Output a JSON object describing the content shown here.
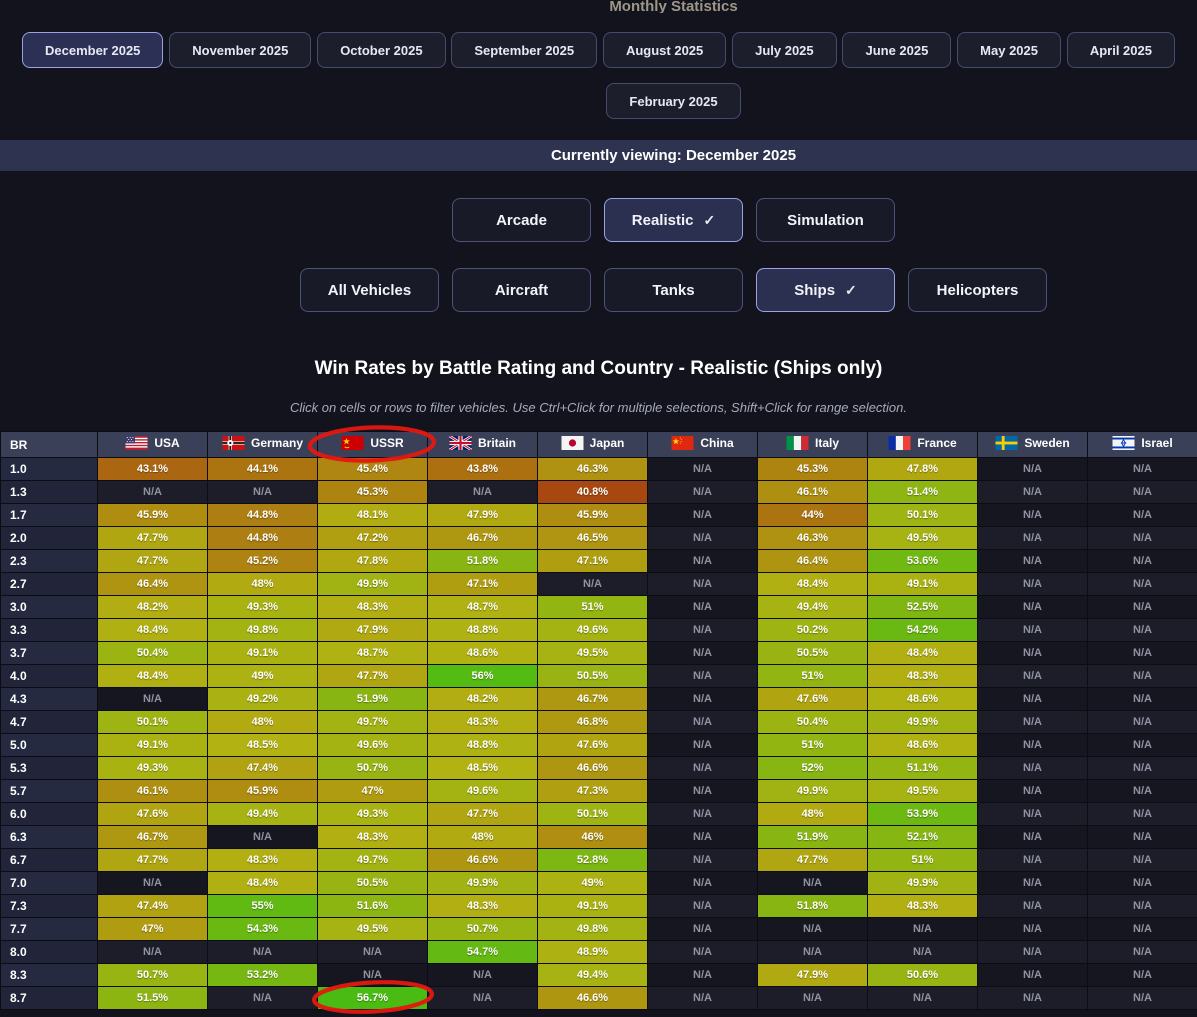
{
  "header": {
    "title": "Monthly Statistics"
  },
  "months": {
    "row1": [
      "December 2025",
      "November 2025",
      "October 2025",
      "September 2025",
      "August 2025",
      "July 2025",
      "June 2025",
      "May 2025",
      "April 2025"
    ],
    "row2": [
      "February 2025"
    ],
    "selected": "December 2025"
  },
  "banner": {
    "text": "Currently viewing: December 2025"
  },
  "mode_buttons": [
    {
      "label": "Arcade",
      "selected": false
    },
    {
      "label": "Realistic",
      "selected": true
    },
    {
      "label": "Simulation",
      "selected": false
    }
  ],
  "vehicle_buttons": [
    {
      "label": "All Vehicles",
      "selected": false
    },
    {
      "label": "Aircraft",
      "selected": false
    },
    {
      "label": "Tanks",
      "selected": false
    },
    {
      "label": "Ships",
      "selected": true
    },
    {
      "label": "Helicopters",
      "selected": false
    }
  ],
  "icons": {
    "check": "✓",
    "flags": [
      "flag-usa-icon",
      "flag-germany-icon",
      "flag-ussr-icon",
      "flag-britain-icon",
      "flag-japan-icon",
      "flag-china-icon",
      "flag-italy-icon",
      "flag-france-icon",
      "flag-sweden-icon",
      "flag-israel-icon"
    ]
  },
  "table": {
    "title": "Win Rates by Battle Rating and Country - Realistic (Ships only)",
    "hint": "Click on cells or rows to filter vehicles. Use Ctrl+Click for multiple selections, Shift+Click for range selection."
  },
  "chart_data": {
    "type": "heatmap",
    "title": "Win Rates by Battle Rating and Country - Realistic (Ships only)",
    "unit": "%",
    "row_header": "BR",
    "categories": [
      "1.0",
      "1.3",
      "1.7",
      "2.0",
      "2.3",
      "2.7",
      "3.0",
      "3.3",
      "3.7",
      "4.0",
      "4.3",
      "4.7",
      "5.0",
      "5.3",
      "5.7",
      "6.0",
      "6.3",
      "6.7",
      "7.0",
      "7.3",
      "7.7",
      "8.0",
      "8.3",
      "8.7"
    ],
    "columns": [
      "USA",
      "Germany",
      "USSR",
      "Britain",
      "Japan",
      "China",
      "Italy",
      "France",
      "Sweden",
      "Israel"
    ],
    "series": [
      {
        "name": "USA",
        "values": [
          "43.1%",
          "N/A",
          "45.9%",
          "47.7%",
          "47.7%",
          "46.4%",
          "48.2%",
          "48.4%",
          "50.4%",
          "48.4%",
          "N/A",
          "50.1%",
          "49.1%",
          "49.3%",
          "46.1%",
          "47.6%",
          "46.7%",
          "47.7%",
          "N/A",
          "47.4%",
          "47%",
          "N/A",
          "50.7%",
          "51.5%"
        ]
      },
      {
        "name": "Germany",
        "values": [
          "44.1%",
          "N/A",
          "44.8%",
          "44.8%",
          "45.2%",
          "48%",
          "49.3%",
          "49.8%",
          "49.1%",
          "49%",
          "49.2%",
          "48%",
          "48.5%",
          "47.4%",
          "45.9%",
          "49.4%",
          "N/A",
          "48.3%",
          "48.4%",
          "55%",
          "54.3%",
          "N/A",
          "53.2%",
          "N/A"
        ]
      },
      {
        "name": "USSR",
        "values": [
          "45.4%",
          "45.3%",
          "48.1%",
          "47.2%",
          "47.8%",
          "49.9%",
          "48.3%",
          "47.9%",
          "48.7%",
          "47.7%",
          "51.9%",
          "49.7%",
          "49.6%",
          "50.7%",
          "47%",
          "49.3%",
          "48.3%",
          "49.7%",
          "50.5%",
          "51.6%",
          "49.5%",
          "N/A",
          "N/A",
          "56.7%"
        ]
      },
      {
        "name": "Britain",
        "values": [
          "43.8%",
          "N/A",
          "47.9%",
          "46.7%",
          "51.8%",
          "47.1%",
          "48.7%",
          "48.8%",
          "48.6%",
          "56%",
          "48.2%",
          "48.3%",
          "48.8%",
          "48.5%",
          "49.6%",
          "47.7%",
          "48%",
          "46.6%",
          "49.9%",
          "48.3%",
          "50.7%",
          "54.7%",
          "N/A",
          "N/A"
        ]
      },
      {
        "name": "Japan",
        "values": [
          "46.3%",
          "40.8%",
          "45.9%",
          "46.5%",
          "47.1%",
          "N/A",
          "51%",
          "49.6%",
          "49.5%",
          "50.5%",
          "46.7%",
          "46.8%",
          "47.6%",
          "46.6%",
          "47.3%",
          "50.1%",
          "46%",
          "52.8%",
          "49%",
          "49.1%",
          "49.8%",
          "48.9%",
          "49.4%",
          "46.6%"
        ]
      },
      {
        "name": "China",
        "values": [
          "N/A",
          "N/A",
          "N/A",
          "N/A",
          "N/A",
          "N/A",
          "N/A",
          "N/A",
          "N/A",
          "N/A",
          "N/A",
          "N/A",
          "N/A",
          "N/A",
          "N/A",
          "N/A",
          "N/A",
          "N/A",
          "N/A",
          "N/A",
          "N/A",
          "N/A",
          "N/A",
          "N/A"
        ]
      },
      {
        "name": "Italy",
        "values": [
          "45.3%",
          "46.1%",
          "44%",
          "46.3%",
          "46.4%",
          "48.4%",
          "49.4%",
          "50.2%",
          "50.5%",
          "51%",
          "47.6%",
          "50.4%",
          "51%",
          "52%",
          "49.9%",
          "48%",
          "51.9%",
          "47.7%",
          "N/A",
          "51.8%",
          "N/A",
          "N/A",
          "47.9%",
          "N/A"
        ]
      },
      {
        "name": "France",
        "values": [
          "47.8%",
          "51.4%",
          "50.1%",
          "49.5%",
          "53.6%",
          "49.1%",
          "52.5%",
          "54.2%",
          "48.4%",
          "48.3%",
          "48.6%",
          "49.9%",
          "48.6%",
          "51.1%",
          "49.5%",
          "53.9%",
          "52.1%",
          "51%",
          "49.9%",
          "48.3%",
          "N/A",
          "N/A",
          "50.6%",
          "N/A"
        ]
      },
      {
        "name": "Sweden",
        "values": [
          "N/A",
          "N/A",
          "N/A",
          "N/A",
          "N/A",
          "N/A",
          "N/A",
          "N/A",
          "N/A",
          "N/A",
          "N/A",
          "N/A",
          "N/A",
          "N/A",
          "N/A",
          "N/A",
          "N/A",
          "N/A",
          "N/A",
          "N/A",
          "N/A",
          "N/A",
          "N/A",
          "N/A"
        ]
      },
      {
        "name": "Israel",
        "values": [
          "N/A",
          "N/A",
          "N/A",
          "N/A",
          "N/A",
          "N/A",
          "N/A",
          "N/A",
          "N/A",
          "N/A",
          "N/A",
          "N/A",
          "N/A",
          "N/A",
          "N/A",
          "N/A",
          "N/A",
          "N/A",
          "N/A",
          "N/A",
          "N/A",
          "N/A",
          "N/A",
          "N/A"
        ]
      }
    ]
  },
  "color_scale": {
    "value_min": 40,
    "value_max": 57,
    "hue_min": 18,
    "hue_max": 102,
    "saturation": 82,
    "lightness_min": 36,
    "lightness_max": 40.5,
    "na_text_color": "#8f92a1"
  },
  "annotations": {
    "color": "#e51710",
    "items": [
      {
        "target": "USSR column header",
        "shape": "hand-drawn ellipse"
      },
      {
        "target": "USSR BR 8.7 cell (56.7%)",
        "shape": "hand-drawn ellipse"
      }
    ]
  },
  "colors": {
    "page_background": "#12131d",
    "banner_background": "#2e3450",
    "selected_button_border": "#9aa3e4",
    "table_header_background": "#3b4059"
  }
}
